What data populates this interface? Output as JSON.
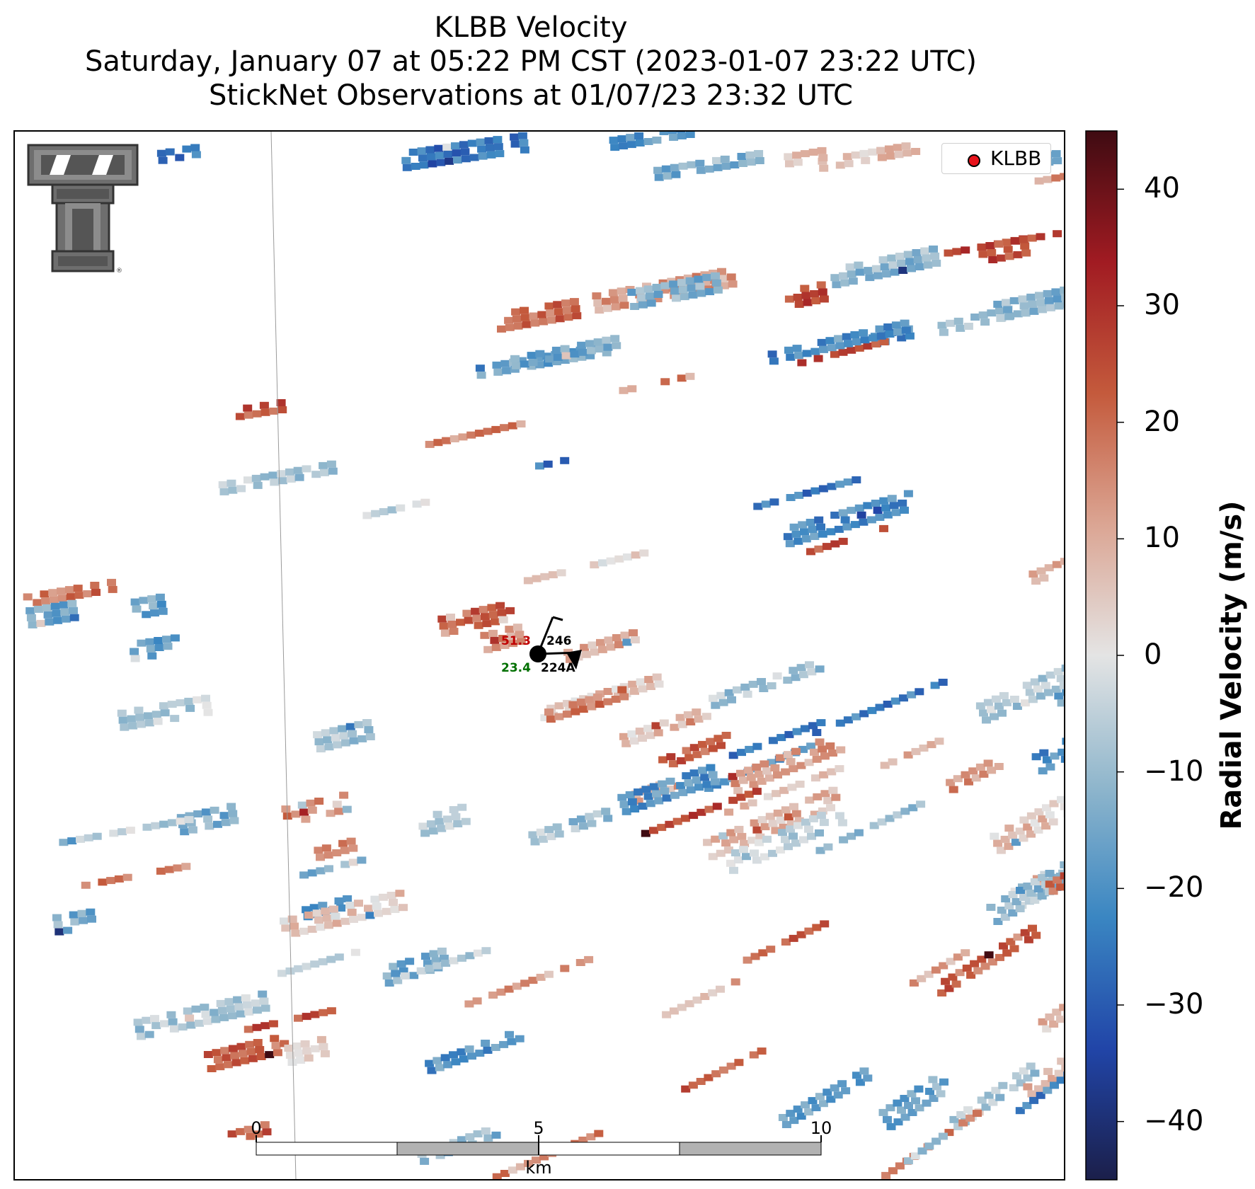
{
  "title": {
    "line1": "KLBB Velocity",
    "line2": "Saturday, January 07 at 05:22 PM CST (2023-01-07 23:22 UTC)",
    "line3": "StickNet Observations at 01/07/23 23:32 UTC"
  },
  "legend": {
    "label": "KLBB",
    "marker_color": "#e8141c"
  },
  "colorbar": {
    "label": "Radial Velocity (m/s)",
    "min": -45,
    "max": 45,
    "ticks": [
      "40",
      "30",
      "20",
      "10",
      "0",
      "−10",
      "−20",
      "−30",
      "−40"
    ],
    "colors": [
      "#1b1f4a",
      "#2145a8",
      "#3a86c2",
      "#8fb6cc",
      "#e4e4e4",
      "#dba593",
      "#c45a3c",
      "#a11b22",
      "#3f0b12"
    ]
  },
  "scale_bar": {
    "labels": [
      "0",
      "5",
      "10"
    ],
    "unit": "km"
  },
  "station": {
    "temperature": "51.3",
    "pressure": "246",
    "dewpoint": "23.4",
    "id": "224A",
    "temperature_color": "#c00000",
    "dewpoint_color": "#007000"
  },
  "logo": {
    "name": "texas-tech-double-t-logo"
  }
}
